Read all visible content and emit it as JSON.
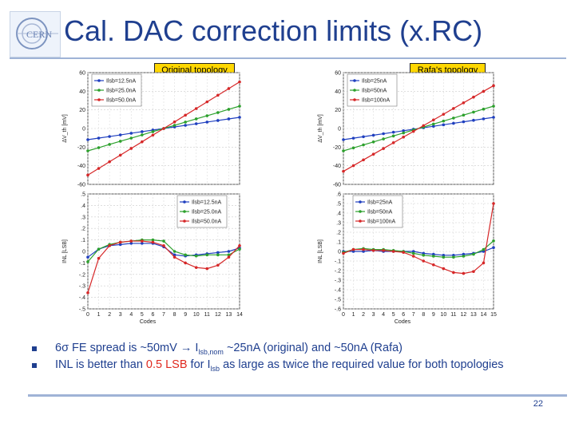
{
  "slide": {
    "title": "Cal. DAC correction limits (x.RC)",
    "logo_text": "CERN",
    "page_number": "22"
  },
  "labels": {
    "original": "Original topology",
    "rafa": "Rafa's topology"
  },
  "bullets": [
    {
      "parts": [
        "6σ FE spread is ~50mV ",
        "→",
        " I",
        "lsb,nom",
        " ~25nA (original) and ~50nA (Rafa)"
      ]
    },
    {
      "parts": [
        "INL is better than ",
        "0.5 LSB",
        " for I",
        "lsb",
        " as large as twice the required value for both topologies"
      ]
    }
  ],
  "colors": {
    "blue": "#1f3fbf",
    "green": "#2ca02c",
    "red": "#d62728",
    "title": "#1f3f8f"
  },
  "chart_data": [
    {
      "type": "line",
      "title": "Original topology - offset",
      "ylabel": "ΔV_th [mV]",
      "xlabel": "",
      "ylim": [
        -60,
        60
      ],
      "yticks": [
        -60,
        -40,
        -20,
        0,
        20,
        40,
        60
      ],
      "x": [
        0,
        1,
        2,
        3,
        4,
        5,
        6,
        7,
        8,
        9,
        10,
        11,
        12,
        13,
        14
      ],
      "series": [
        {
          "name": "Ilsb=12.5nA",
          "color": "blue",
          "values": [
            -12,
            -10.3,
            -8.6,
            -6.9,
            -5.1,
            -3.4,
            -1.7,
            0,
            1.7,
            3.4,
            5.1,
            6.9,
            8.6,
            10.3,
            12
          ]
        },
        {
          "name": "Ilsb=25.0nA",
          "color": "green",
          "values": [
            -24,
            -20.6,
            -17.1,
            -13.7,
            -10.3,
            -6.9,
            -3.4,
            0,
            3.4,
            6.9,
            10.3,
            13.7,
            17.1,
            20.6,
            24
          ]
        },
        {
          "name": "Ilsb=50.0nA",
          "color": "red",
          "values": [
            -50,
            -42.9,
            -35.7,
            -28.6,
            -21.4,
            -14.3,
            -7.1,
            0,
            7.1,
            14.3,
            21.4,
            28.6,
            35.7,
            42.9,
            50
          ]
        }
      ]
    },
    {
      "type": "line",
      "title": "Original topology - INL",
      "ylabel": "INL [LSB]",
      "xlabel": "Codes",
      "ylim": [
        -0.5,
        0.5
      ],
      "yticks": [
        -0.5,
        -0.4,
        -0.3,
        -0.2,
        -0.1,
        0,
        0.1,
        0.2,
        0.3,
        0.4,
        0.5
      ],
      "xticks": [
        0,
        1,
        2,
        3,
        4,
        5,
        6,
        7,
        8,
        9,
        10,
        11,
        12,
        13,
        14
      ],
      "x": [
        0,
        1,
        2,
        3,
        4,
        5,
        6,
        7,
        8,
        9,
        10,
        11,
        12,
        13,
        14
      ],
      "series": [
        {
          "name": "Ilsb=12.5nA",
          "color": "blue",
          "values": [
            -0.05,
            0.02,
            0.05,
            0.06,
            0.07,
            0.07,
            0.07,
            0.04,
            -0.03,
            -0.04,
            -0.03,
            -0.02,
            -0.01,
            0.0,
            0.03
          ]
        },
        {
          "name": "Ilsb=25.0nA",
          "color": "green",
          "values": [
            -0.09,
            0.02,
            0.06,
            0.08,
            0.09,
            0.1,
            0.1,
            0.09,
            0.0,
            -0.03,
            -0.04,
            -0.03,
            -0.03,
            -0.03,
            0.02
          ]
        },
        {
          "name": "Ilsb=50.0nA",
          "color": "red",
          "values": [
            -0.36,
            -0.06,
            0.05,
            0.08,
            0.09,
            0.09,
            0.08,
            0.05,
            -0.05,
            -0.1,
            -0.14,
            -0.15,
            -0.12,
            -0.05,
            0.05
          ]
        }
      ]
    },
    {
      "type": "line",
      "title": "Rafa's topology - offset",
      "ylabel": "ΔV_th [mV]",
      "xlabel": "",
      "ylim": [
        -60,
        60
      ],
      "yticks": [
        -60,
        -40,
        -20,
        0,
        20,
        40,
        60
      ],
      "x": [
        0,
        1,
        2,
        3,
        4,
        5,
        6,
        7,
        8,
        9,
        10,
        11,
        12,
        13,
        14,
        15
      ],
      "series": [
        {
          "name": "Ilsb=25nA",
          "color": "blue",
          "values": [
            -12,
            -10.4,
            -8.8,
            -7.2,
            -5.6,
            -4,
            -2.4,
            -0.8,
            0.8,
            2.4,
            4,
            5.6,
            7.2,
            8.8,
            10.4,
            12
          ]
        },
        {
          "name": "Ilsb=50nA",
          "color": "green",
          "values": [
            -24,
            -20.8,
            -17.6,
            -14.4,
            -11.2,
            -8,
            -4.8,
            -1.6,
            1.6,
            4.8,
            8,
            11.2,
            14.4,
            17.6,
            20.8,
            24
          ]
        },
        {
          "name": "Ilsb=100nA",
          "color": "red",
          "values": [
            -46,
            -39.9,
            -33.7,
            -27.6,
            -21.5,
            -15.3,
            -9.2,
            -3.1,
            3.1,
            9.2,
            15.3,
            21.5,
            27.6,
            33.7,
            39.9,
            46
          ]
        }
      ]
    },
    {
      "type": "line",
      "title": "Rafa's topology - INL",
      "ylabel": "INL [LSB]",
      "xlabel": "Codes",
      "ylim": [
        -0.6,
        0.6
      ],
      "yticks": [
        -0.6,
        -0.5,
        -0.4,
        -0.3,
        -0.2,
        -0.1,
        0,
        0.1,
        0.2,
        0.3,
        0.4,
        0.5,
        0.6
      ],
      "xticks": [
        0,
        1,
        2,
        3,
        4,
        5,
        6,
        7,
        8,
        9,
        10,
        11,
        12,
        13,
        14,
        15
      ],
      "x": [
        0,
        1,
        2,
        3,
        4,
        5,
        6,
        7,
        8,
        9,
        10,
        11,
        12,
        13,
        14,
        15
      ],
      "series": [
        {
          "name": "Ilsb=25nA",
          "color": "blue",
          "values": [
            0.0,
            0.0,
            0.0,
            0.01,
            0.0,
            0.0,
            0.0,
            0.0,
            -0.02,
            -0.03,
            -0.04,
            -0.04,
            -0.03,
            -0.02,
            0.0,
            0.04
          ]
        },
        {
          "name": "Ilsb=50nA",
          "color": "green",
          "values": [
            -0.01,
            0.02,
            0.03,
            0.02,
            0.02,
            0.01,
            0.0,
            -0.02,
            -0.04,
            -0.05,
            -0.06,
            -0.06,
            -0.05,
            -0.03,
            0.02,
            0.11
          ]
        },
        {
          "name": "Ilsb=100nA",
          "color": "red",
          "values": [
            -0.02,
            0.02,
            0.02,
            0.01,
            0.01,
            0.0,
            -0.01,
            -0.05,
            -0.1,
            -0.14,
            -0.18,
            -0.22,
            -0.23,
            -0.21,
            -0.12,
            0.5
          ]
        }
      ]
    }
  ]
}
